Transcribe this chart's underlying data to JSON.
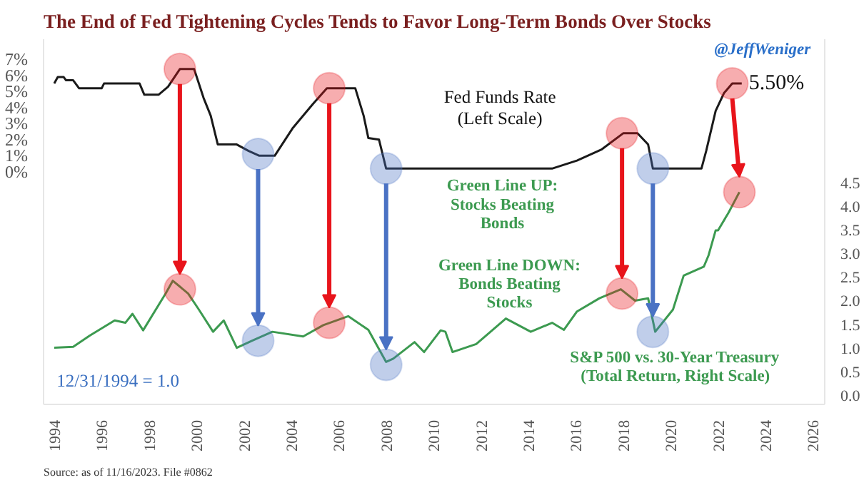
{
  "chart_data": {
    "type": "line",
    "title": "The End of Fed Tightening Cycles Tends to Favor Long-Term Bonds Over Stocks",
    "annotations": [
      "@JeffWeniger",
      "Fed Funds Rate\n(Left Scale)",
      {
        "text": "5.50%",
        "x": 2022.6,
        "y": 5.5
      },
      "Green Line UP:\nStocks Beating\nBonds",
      "Green Line DOWN:\nBonds Beating\nStocks",
      "S&P 500 vs. 30-Year Treasury\n(Total Return, Right Scale)",
      "12/31/1994 = 1.0",
      "Source: as of 11/16/2023. File #0862"
    ],
    "series": [
      {
        "color": "#1a1a1a",
        "x": [
          1994.0,
          1994.15,
          1994.4,
          1994.5,
          1994.8,
          1995.05,
          1996.0,
          1996.1,
          1997.6,
          1997.8,
          1998.4,
          1998.8,
          1999.3,
          1999.9,
          2000.3,
          2000.6,
          2000.9,
          2001.7,
          2002.2,
          2002.65,
          2003.3,
          2004.05,
          2004.9,
          2005.5,
          2006.7,
          2007.05,
          2007.25,
          2007.7,
          2008.0,
          2015.0,
          2016.05,
          2017.1,
          2018.0,
          2018.6,
          2019.05,
          2019.25,
          2021.3,
          2021.5,
          2021.9,
          2022.25,
          2022.6,
          2023.0
        ],
        "values": [
          5.5,
          5.9,
          5.9,
          5.7,
          5.7,
          5.2,
          5.2,
          5.5,
          5.5,
          4.8,
          4.8,
          5.3,
          6.4,
          6.4,
          4.6,
          3.5,
          1.7,
          1.7,
          1.3,
          1.0,
          1.0,
          2.7,
          4.2,
          5.2,
          5.2,
          3.5,
          2.1,
          2.0,
          0.2,
          0.2,
          0.7,
          1.4,
          2.4,
          2.4,
          1.7,
          0.2,
          0.2,
          1.3,
          3.8,
          4.9,
          5.5,
          5.5
        ]
      },
      {
        "axis": "y2",
        "color": "#3c9a50",
        "x": [
          1994.0,
          1994.8,
          1995.5,
          1996.55,
          1997.0,
          1997.3,
          1997.75,
          1998.7,
          1999.0,
          1999.65,
          2000.1,
          2000.7,
          2001.15,
          2001.7,
          2002.35,
          2003.2,
          2004.5,
          2005.35,
          2006.4,
          2007.25,
          2008.0,
          2008.3,
          2009.2,
          2009.6,
          2010.3,
          2010.5,
          2010.8,
          2011.8,
          2013.05,
          2014.1,
          2015.0,
          2015.5,
          2016.05,
          2017.0,
          2017.9,
          2018.5,
          2019.05,
          2019.35,
          2020.1,
          2020.55,
          2021.4,
          2021.6,
          2021.9,
          2022.0,
          2022.45,
          2022.9
        ],
        "values": [
          1.0,
          1.02,
          1.26,
          1.58,
          1.53,
          1.72,
          1.37,
          2.15,
          2.42,
          2.15,
          1.81,
          1.34,
          1.58,
          1.0,
          1.15,
          1.34,
          1.24,
          1.48,
          1.67,
          1.38,
          0.7,
          0.77,
          1.12,
          0.91,
          1.37,
          1.34,
          0.91,
          1.08,
          1.62,
          1.34,
          1.53,
          1.38,
          1.77,
          2.05,
          2.24,
          2.0,
          2.05,
          1.34,
          1.81,
          2.53,
          2.72,
          2.96,
          3.49,
          3.49,
          3.87,
          4.3
        ]
      },
      {
        "type": "scatter",
        "marker": "circle",
        "color": "#e8141b",
        "x": [
          1999.3,
          2005.6,
          2017.95,
          2022.6
        ],
        "values": [
          6.4,
          5.2,
          2.4,
          5.5
        ]
      },
      {
        "type": "scatter",
        "marker": "circle",
        "axis": "y2",
        "color": "#e8141b",
        "x": [
          1999.3,
          2005.6,
          2017.95,
          2022.9
        ],
        "values": [
          2.24,
          1.53,
          2.15,
          4.3
        ]
      },
      {
        "type": "scatter",
        "marker": "circle",
        "color": "#4a72c4",
        "x": [
          2002.6,
          2008.0,
          2019.25
        ],
        "values": [
          1.1,
          0.2,
          0.2
        ]
      },
      {
        "type": "scatter",
        "marker": "circle",
        "axis": "y2",
        "color": "#4a72c4",
        "x": [
          2002.6,
          2008.0,
          2019.25
        ],
        "values": [
          1.15,
          0.64,
          1.34
        ]
      }
    ],
    "line_style": "solid",
    "xlim": [
      1993.55,
      2026.5
    ],
    "xticks": [
      1994,
      1996,
      1998,
      2000,
      2002,
      2004,
      2006,
      2008,
      2010,
      2012,
      2014,
      2016,
      2018,
      2020,
      2022,
      2024,
      2026
    ],
    "ylim": [
      -14.5,
      8.26
    ],
    "yticks": [
      {
        "value": 0,
        "label": "0%"
      },
      {
        "value": 1,
        "label": "1%"
      },
      {
        "value": 2,
        "label": "2%"
      },
      {
        "value": 3,
        "label": "3%"
      },
      {
        "value": 4,
        "label": "4%"
      },
      {
        "value": 5,
        "label": "5%"
      },
      {
        "value": 6,
        "label": "6%"
      },
      {
        "value": 7,
        "label": "7%"
      }
    ],
    "y2lim": [
      -0.2,
      7.54
    ],
    "y2ticks": [
      {
        "value": 0,
        "label": "0.0"
      },
      {
        "value": 0.5,
        "label": "0.5"
      },
      {
        "value": 1,
        "label": "1.0"
      },
      {
        "value": 1.5,
        "label": "1.5"
      },
      {
        "value": 2,
        "label": "2.0"
      },
      {
        "value": 2.5,
        "label": "2.5"
      },
      {
        "value": 3,
        "label": "3.0"
      },
      {
        "value": 3.5,
        "label": "3.5"
      },
      {
        "value": 4,
        "label": "4.0"
      },
      {
        "value": 4.5,
        "label": "4.5"
      }
    ],
    "grid": false
  }
}
